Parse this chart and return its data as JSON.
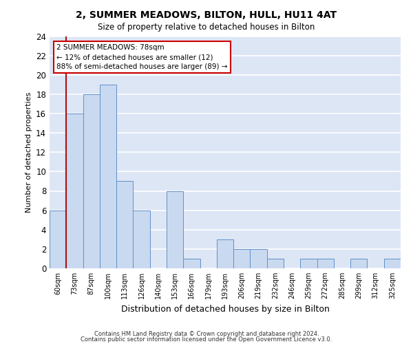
{
  "title": "2, SUMMER MEADOWS, BILTON, HULL, HU11 4AT",
  "subtitle": "Size of property relative to detached houses in Bilton",
  "xlabel": "Distribution of detached houses by size in Bilton",
  "ylabel": "Number of detached properties",
  "bin_labels": [
    "60sqm",
    "73sqm",
    "87sqm",
    "100sqm",
    "113sqm",
    "126sqm",
    "140sqm",
    "153sqm",
    "166sqm",
    "179sqm",
    "193sqm",
    "206sqm",
    "219sqm",
    "232sqm",
    "246sqm",
    "259sqm",
    "272sqm",
    "285sqm",
    "299sqm",
    "312sqm",
    "325sqm"
  ],
  "bar_values": [
    6,
    16,
    18,
    19,
    9,
    6,
    0,
    8,
    1,
    0,
    3,
    2,
    2,
    1,
    0,
    1,
    1,
    0,
    1,
    0,
    1
  ],
  "bar_color": "#c9d9f0",
  "bar_edge_color": "#6090c8",
  "background_color": "#dde6f5",
  "grid_color": "#ffffff",
  "vline_x_index": 1.0,
  "vline_color": "#aa1010",
  "ylim": [
    0,
    24
  ],
  "yticks": [
    0,
    2,
    4,
    6,
    8,
    10,
    12,
    14,
    16,
    18,
    20,
    22,
    24
  ],
  "annotation_title": "2 SUMMER MEADOWS: 78sqm",
  "annotation_line1": "← 12% of detached houses are smaller (12)",
  "annotation_line2": "88% of semi-detached houses are larger (89) →",
  "annotation_box_color": "#ffffff",
  "annotation_box_edge": "#cc0000",
  "footer1": "Contains HM Land Registry data © Crown copyright and database right 2024.",
  "footer2": "Contains public sector information licensed under the Open Government Licence v3.0."
}
